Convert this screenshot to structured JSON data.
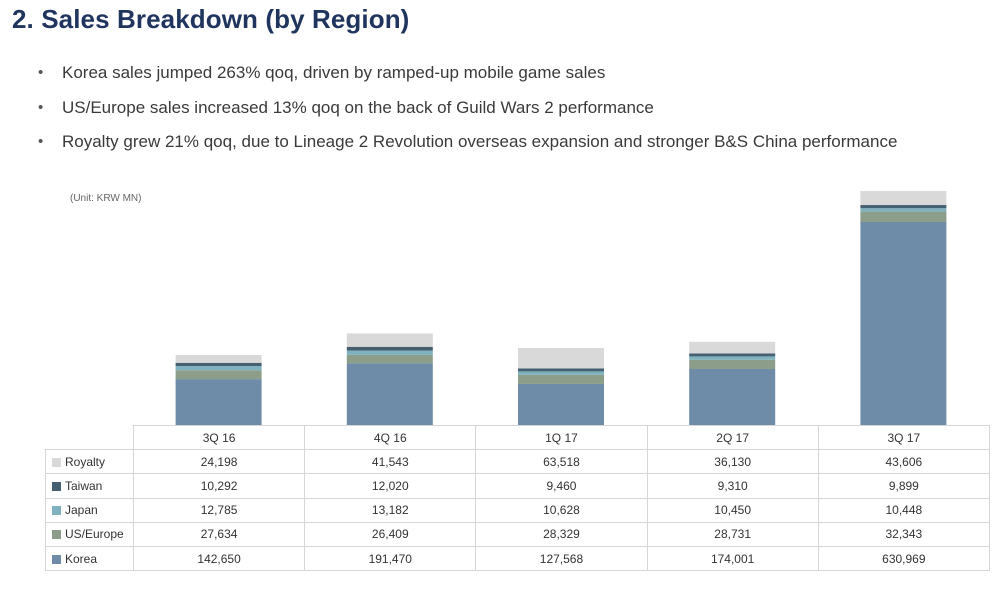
{
  "page": {
    "title": "2. Sales Breakdown (by Region)",
    "bullets": [
      "Korea sales jumped 263% qoq, driven by ramped-up mobile game sales",
      "US/Europe sales increased 13% qoq on the back of Guild Wars 2 performance",
      "Royalty grew 21% qoq, due to Lineage 2 Revolution overseas expansion and stronger B&S China performance"
    ]
  },
  "chart_data": {
    "type": "bar",
    "stacked": true,
    "unit_note": "(Unit: KRW MN)",
    "categories": [
      "3Q 16",
      "4Q 16",
      "1Q 17",
      "2Q 17",
      "3Q 17"
    ],
    "series": [
      {
        "name": "Korea",
        "color": "#6e8ca8",
        "values": [
          142650,
          191470,
          127568,
          174001,
          630969
        ]
      },
      {
        "name": "US/Europe",
        "color": "#8c9e8a",
        "values": [
          27634,
          26409,
          28329,
          28731,
          32343
        ]
      },
      {
        "name": "Japan",
        "color": "#7fb2be",
        "values": [
          12785,
          13182,
          10628,
          10450,
          10448
        ]
      },
      {
        "name": "Taiwan",
        "color": "#456070",
        "values": [
          10292,
          12020,
          9460,
          9310,
          9899
        ]
      },
      {
        "name": "Royalty",
        "color": "#d9d9d9",
        "values": [
          24198,
          41543,
          63518,
          36130,
          43606
        ]
      }
    ],
    "table_row_order": [
      "Royalty",
      "Taiwan",
      "Japan",
      "US/Europe",
      "Korea"
    ],
    "value_labels": {
      "Royalty": [
        "24,198",
        "41,543",
        "63,518",
        "36,130",
        "43,606"
      ],
      "Taiwan": [
        "10,292",
        "12,020",
        "9,460",
        "9,310",
        "9,899"
      ],
      "Japan": [
        "12,785",
        "13,182",
        "10,628",
        "10,450",
        "10,448"
      ],
      "US/Europe": [
        "27,634",
        "26,409",
        "28,329",
        "28,731",
        "32,343"
      ],
      "Korea": [
        "142,650",
        "191,470",
        "127,568",
        "174,001",
        "630,969"
      ]
    }
  }
}
